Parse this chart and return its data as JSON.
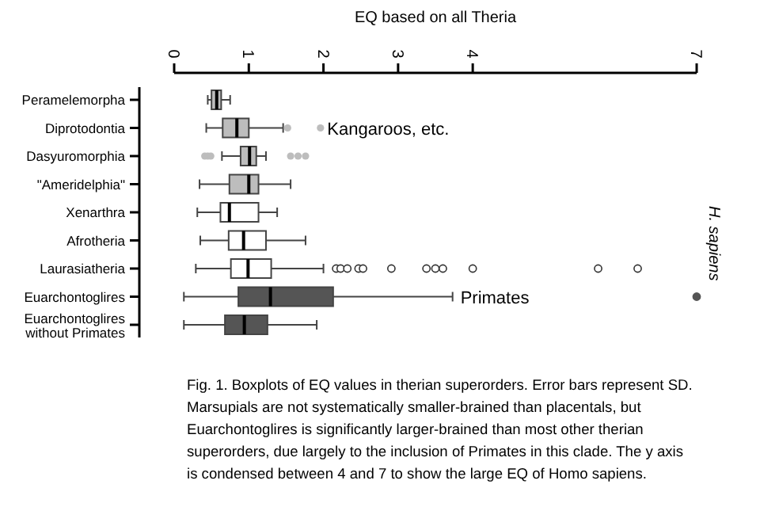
{
  "chart_data": {
    "type": "box",
    "orientation": "horizontal",
    "xlabel": "EQ based on all Theria",
    "categories": [
      "Peramelemorpha",
      "Diprotodontia",
      "Dasyuromorphia",
      "\"Ameridelphia\"",
      "Xenarthra",
      "Afrotheria",
      "Laurasiatheria",
      "Euarchontoglires",
      "Euarchontoglires without Primates"
    ],
    "colors": [
      "#bdbdbd",
      "#bdbdbd",
      "#bdbdbd",
      "#bdbdbd",
      "#ffffff",
      "#ffffff",
      "#ffffff",
      "#555555",
      "#555555"
    ],
    "boxes": [
      {
        "low": 0.45,
        "q1": 0.5,
        "median": 0.57,
        "q3": 0.63,
        "high": 0.75
      },
      {
        "low": 0.43,
        "q1": 0.65,
        "median": 0.84,
        "q3": 1.0,
        "high": 1.46,
        "outliers": [
          1.52,
          1.96
        ]
      },
      {
        "low": 0.64,
        "q1": 0.89,
        "median": 1.01,
        "q3": 1.1,
        "high": 1.23,
        "outliers": [
          0.41,
          0.45,
          0.49,
          1.56,
          1.66,
          1.76
        ]
      },
      {
        "low": 0.34,
        "q1": 0.74,
        "median": 1.0,
        "q3": 1.13,
        "high": 1.56
      },
      {
        "low": 0.31,
        "q1": 0.62,
        "median": 0.74,
        "q3": 1.13,
        "high": 1.38
      },
      {
        "low": 0.35,
        "q1": 0.73,
        "median": 0.93,
        "q3": 1.23,
        "high": 1.76
      },
      {
        "low": 0.29,
        "q1": 0.76,
        "median": 0.99,
        "q3": 1.3,
        "high": 2.0,
        "outliers": [
          2.17,
          2.23,
          2.32,
          2.47,
          2.53,
          2.91,
          3.38,
          3.5,
          3.6,
          4.0,
          5.68,
          6.21
        ]
      },
      {
        "low": 0.13,
        "q1": 0.86,
        "median": 1.29,
        "q3": 2.13,
        "high": 3.73,
        "outliers": [
          7
        ]
      },
      {
        "low": 0.13,
        "q1": 0.68,
        "median": 0.94,
        "q3": 1.25,
        "high": 1.91
      }
    ],
    "xlim": [
      0,
      7
    ],
    "xticks": [
      0,
      1,
      2,
      3,
      4,
      7
    ],
    "annotations": [
      "Kangaroos, etc.",
      "Primates",
      "H. sapiens",
      "Fig. 1. Boxplots of EQ values in therian superorders. Error bars represent SD. Marsupials are not systematically smaller-brained than placentals, but Euarchontoglires is significantly larger-brained than most other therian superorders, due largely to the inclusion of Primates in this clade. The y axis is condensed between 4 and 7 to show the large EQ of Homo sapiens."
    ]
  }
}
